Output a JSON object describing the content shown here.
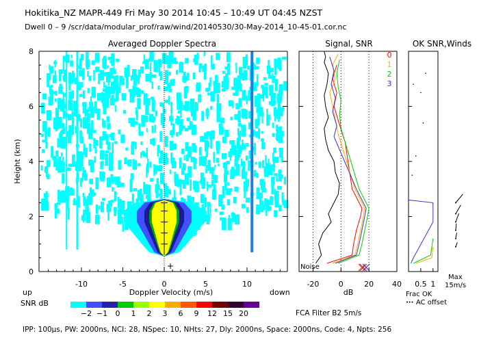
{
  "header": {
    "line1": "Hokitika_NZ   MAPR-449   Fri May 30 2014 10:45 – 10:49 UT 04:45 NZST",
    "line2": "Dwell   0 –  9    /scr/data/modular_prof/raw/wind/20140530/30-May-2014_10-45-01.cor.nc"
  },
  "footer": {
    "params": "IPP: 100μs,  PW: 2000ns,  NCI:  28,  NSpec: 10,  NHts: 27,  Dly: 2000ns,  Space: 2000ns,  Code: 4,  Npts: 256",
    "fca": "FCA Filter B2   5m/s"
  },
  "colors": {
    "noise_cyan": "#00ffff",
    "vertical_line_blue": "#1f7fe0",
    "signal_line": "#000000",
    "snr_beam_colors": [
      "#ff0000",
      "#ffaa00",
      "#00cc00",
      "#3333cc"
    ],
    "colorbar": [
      "#00ffff",
      "#3f50ff",
      "#2222aa",
      "#00cc00",
      "#99ff00",
      "#ffff00",
      "#ffaa00",
      "#ff5500",
      "#ff0000",
      "#770000",
      "#330033",
      "#660099"
    ]
  },
  "chart_data": [
    {
      "type": "heatmap",
      "title": "Averaged Doppler Spectra",
      "xlabel": "Doppler Velocity (m/s)",
      "ylabel": "Height (km)",
      "xlim": [
        -15,
        15
      ],
      "ylim": [
        0,
        8
      ],
      "xticks": [
        -10,
        -5,
        0,
        5,
        10
      ],
      "yticks": [
        0,
        2,
        4,
        6,
        8
      ],
      "x_end_left": "up",
      "x_end_right": "down",
      "spectral_core": [
        {
          "h": 0.7,
          "width_ms": 0.6
        },
        {
          "h": 1.0,
          "width_ms": 1.0
        },
        {
          "h": 1.4,
          "width_ms": 1.5
        },
        {
          "h": 1.8,
          "width_ms": 2.0
        },
        {
          "h": 2.2,
          "width_ms": 2.0
        },
        {
          "h": 2.5,
          "width_ms": 1.4
        }
      ],
      "colorbar_label": "SNR dB",
      "colorbar_ticks": [
        "−2",
        "−1",
        "0",
        "1",
        "2",
        "3",
        "6",
        "9",
        "12",
        "15",
        "20"
      ]
    },
    {
      "type": "line",
      "title": "Signal, SNR",
      "xlabel": "dB",
      "xlim": [
        -30,
        40
      ],
      "ylim": [
        0,
        8
      ],
      "xticks": [
        -20,
        0,
        20,
        40
      ],
      "noise_label": "Noise",
      "legend": [
        "0",
        "1",
        "2",
        "3"
      ],
      "series": [
        {
          "name": "signal",
          "x": [
            -18,
            -14,
            -16,
            -13,
            -10,
            -7,
            -9,
            -6,
            -4,
            -2,
            -1,
            -4,
            -5,
            -9,
            -11,
            -12,
            -9,
            -11,
            -12,
            -10,
            -9,
            -12,
            -11,
            -12,
            -10
          ],
          "y": [
            0.3,
            0.6,
            1.0,
            1.4,
            1.6,
            1.8,
            2.1,
            2.4,
            2.6,
            2.8,
            3.2,
            3.6,
            4.0,
            4.4,
            4.8,
            5.2,
            5.6,
            6.0,
            6.4,
            6.8,
            7.2,
            7.6,
            7.8,
            8.0,
            8.0
          ]
        },
        {
          "name": "0",
          "x": [
            -10,
            8,
            9,
            11,
            14,
            15,
            12,
            10,
            8,
            3,
            1,
            -2,
            -5,
            -3,
            -6,
            -3
          ],
          "y": [
            0.3,
            0.6,
            1.0,
            1.5,
            2.0,
            2.3,
            2.6,
            2.8,
            3.0,
            4.7,
            5.0,
            5.5,
            6.0,
            6.5,
            7.0,
            7.5
          ]
        },
        {
          "name": "1",
          "x": [
            -6,
            10,
            12,
            14,
            16,
            17,
            14,
            12,
            10,
            -2,
            -4,
            -6,
            -8,
            -4,
            -6,
            -2
          ],
          "y": [
            0.3,
            0.6,
            1.0,
            1.5,
            2.0,
            2.3,
            2.6,
            2.8,
            3.0,
            5.0,
            5.5,
            6.0,
            6.5,
            7.0,
            7.5,
            7.9
          ]
        },
        {
          "name": "2",
          "x": [
            -2,
            13,
            15,
            17,
            19,
            20,
            17,
            15,
            13,
            0,
            -1,
            0,
            -2,
            -3,
            -1
          ],
          "y": [
            0.3,
            0.6,
            1.0,
            1.5,
            2.0,
            2.3,
            2.6,
            2.8,
            3.0,
            5.2,
            5.7,
            6.2,
            6.7,
            7.2,
            7.7
          ]
        },
        {
          "name": "3",
          "x": [
            -4,
            11,
            13,
            15,
            17,
            18,
            15,
            13,
            11,
            -5,
            -3,
            -6,
            -4,
            -7,
            -5,
            -8
          ],
          "y": [
            0.3,
            0.6,
            1.0,
            1.5,
            2.0,
            2.3,
            2.6,
            2.8,
            3.0,
            4.9,
            5.3,
            5.8,
            6.3,
            6.8,
            7.3,
            7.8
          ]
        }
      ]
    },
    {
      "type": "line",
      "title": "OK SNR,Winds",
      "title_prefix": "OK",
      "xlabel": "Frac OK",
      "xticks": [
        "0.5",
        "1"
      ],
      "xlim": [
        0,
        1.2
      ],
      "ylim": [
        0,
        8
      ],
      "ac_offset_label": "AC offset",
      "wind_max_label": "Max",
      "wind_max_value": "15m/s",
      "series": [
        {
          "name": "3",
          "x": [
            0.1,
            0.2,
            1.0,
            1.0,
            0.0
          ],
          "y": [
            0.3,
            0.5,
            1.8,
            2.5,
            2.6
          ]
        },
        {
          "name": "2",
          "x": [
            0.2,
            0.9,
            1.0
          ],
          "y": [
            0.3,
            0.6,
            1.2
          ]
        },
        {
          "name": "1",
          "x": [
            0.3,
            0.95,
            1.0
          ],
          "y": [
            0.3,
            0.5,
            0.9
          ]
        }
      ],
      "winds": [
        {
          "h": 0.9,
          "dir_deg": 200,
          "speed": 3
        },
        {
          "h": 1.2,
          "dir_deg": 190,
          "speed": 4
        },
        {
          "h": 1.5,
          "dir_deg": 185,
          "speed": 5
        },
        {
          "h": 1.8,
          "dir_deg": 200,
          "speed": 7
        },
        {
          "h": 2.1,
          "dir_deg": 210,
          "speed": 8
        },
        {
          "h": 2.5,
          "dir_deg": 220,
          "speed": 9
        }
      ]
    }
  ]
}
